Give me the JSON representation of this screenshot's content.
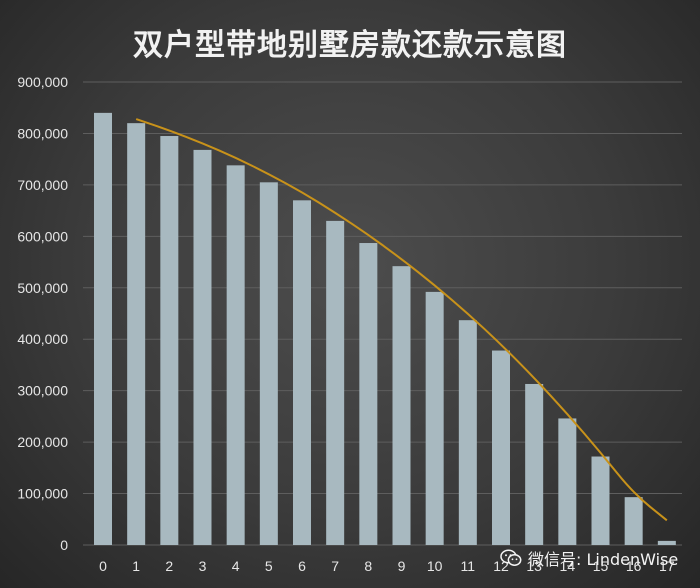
{
  "chart_data": {
    "type": "bar",
    "title": "双户型带地别墅房款还款示意图",
    "xlabel": "",
    "ylabel": "",
    "categories": [
      "0",
      "1",
      "2",
      "3",
      "4",
      "5",
      "6",
      "7",
      "8",
      "9",
      "10",
      "11",
      "12",
      "13",
      "14",
      "15",
      "16",
      "17"
    ],
    "values": [
      840000,
      820000,
      795000,
      768000,
      738000,
      705000,
      670000,
      630000,
      587000,
      542000,
      492000,
      437000,
      378000,
      313000,
      246000,
      172000,
      93000,
      8000
    ],
    "trend": {
      "x": [
        1,
        2,
        3,
        4,
        5,
        6,
        7,
        8,
        9,
        10,
        11,
        12,
        13,
        14,
        15,
        16,
        17
      ],
      "y": [
        828000,
        806000,
        781000,
        753000,
        721000,
        686000,
        646000,
        603000,
        556000,
        505000,
        450000,
        390000,
        325000,
        255000,
        180000,
        100000,
        48000
      ]
    },
    "ylim": [
      0,
      900000
    ],
    "yticks": [
      0,
      100000,
      200000,
      300000,
      400000,
      500000,
      600000,
      700000,
      800000,
      900000
    ],
    "ytick_labels": [
      "0",
      "100,000",
      "200,000",
      "300,000",
      "400,000",
      "500,000",
      "600,000",
      "700,000",
      "800,000",
      "900,000"
    ],
    "grid": true,
    "colors": {
      "bar": "#a8b9c0",
      "trend": "#c8921a",
      "grid": "#5e5e5e",
      "text": "#e6e6e6"
    }
  },
  "watermark": {
    "icon": "wechat-icon",
    "text": "微信号: LindenWise"
  }
}
